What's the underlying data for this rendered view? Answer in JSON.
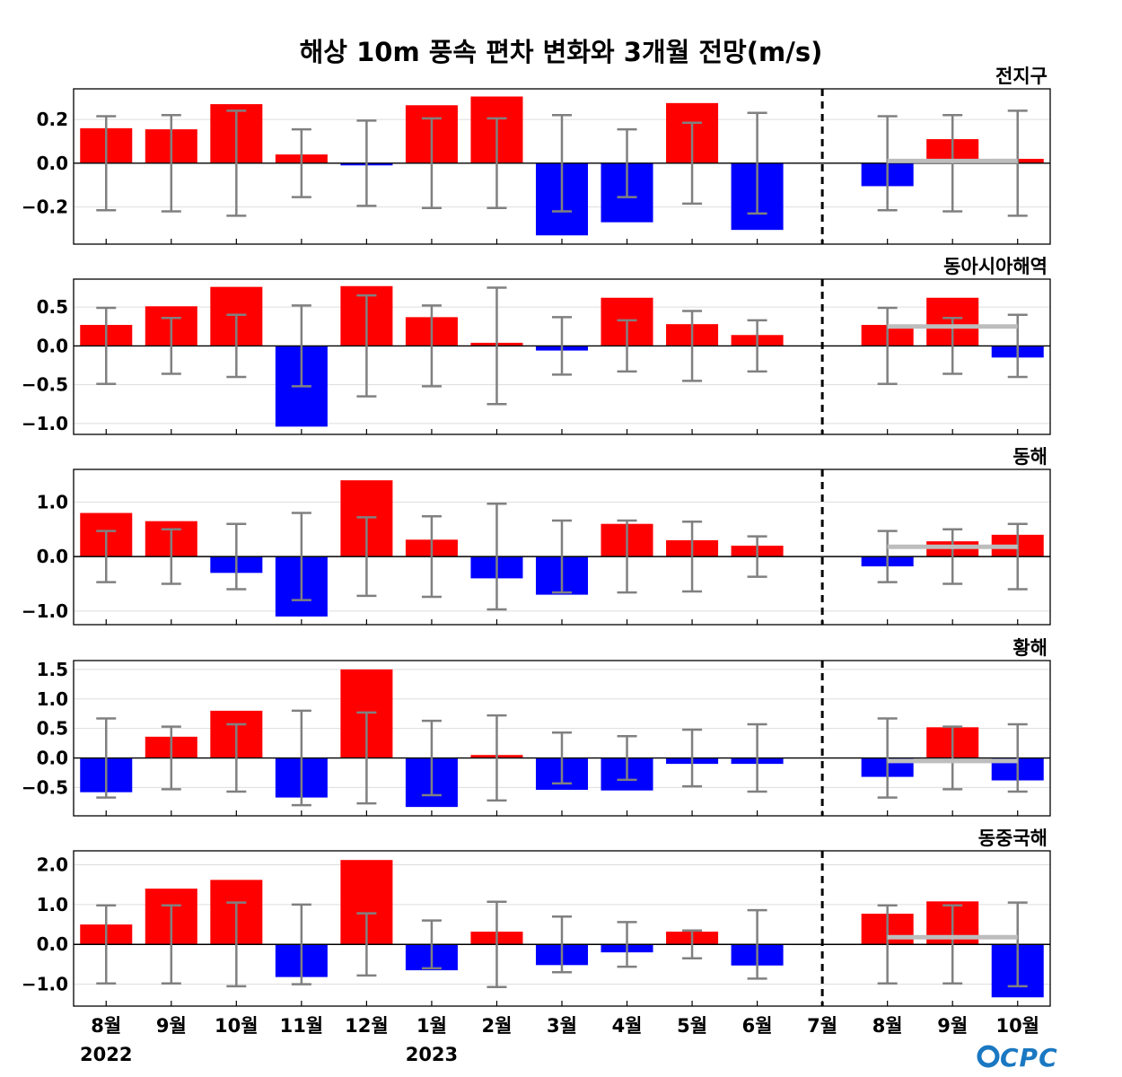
{
  "title": "해상 10m 풍속 편차 변화와 3개월 전망(m/s)",
  "logo": "CPC",
  "colors": {
    "positive": "#ff0000",
    "negative": "#0000ff",
    "errorbar": "#808080",
    "forecast_line": "#bdbdbd",
    "logo": "#1a78c2"
  },
  "chart_data": {
    "type": "bar",
    "categories": [
      "8월",
      "9월",
      "10월",
      "11월",
      "12월",
      "1월",
      "2월",
      "3월",
      "4월",
      "5월",
      "6월",
      "7월",
      "8월",
      "9월",
      "10월"
    ],
    "year_labels": [
      {
        "index": 0,
        "text": "2022"
      },
      {
        "index": 5,
        "text": "2023"
      }
    ],
    "divider_after_category": "7월",
    "panels": [
      {
        "name": "전지구",
        "ylim": [
          -0.37,
          0.34
        ],
        "yticks": [
          0.2,
          0.0,
          -0.2
        ],
        "ytick_labels": [
          "0.2",
          "0.0",
          "−0.2"
        ],
        "values": [
          0.16,
          0.155,
          0.27,
          0.04,
          -0.01,
          0.265,
          0.305,
          -0.33,
          -0.27,
          0.275,
          -0.305,
          0.0,
          -0.105,
          0.11,
          0.02
        ],
        "error_half": [
          0.215,
          0.22,
          0.24,
          0.155,
          0.195,
          0.205,
          0.205,
          0.22,
          0.155,
          0.185,
          0.23,
          0,
          0.215,
          0.22,
          0.24
        ],
        "forecast_line": {
          "value": 0.01,
          "from": "8월",
          "to": "10월"
        }
      },
      {
        "name": "동아시아해역",
        "ylim": [
          -1.14,
          0.86
        ],
        "yticks": [
          0.5,
          0.0,
          -0.5,
          -1.0
        ],
        "ytick_labels": [
          "0.5",
          "0.0",
          "−0.5",
          "−1.0"
        ],
        "values": [
          0.27,
          0.51,
          0.76,
          -1.04,
          0.77,
          0.37,
          0.04,
          -0.06,
          0.62,
          0.28,
          0.14,
          0.0,
          0.27,
          0.62,
          -0.15
        ],
        "error_half": [
          0.49,
          0.36,
          0.4,
          0.52,
          0.65,
          0.52,
          0.75,
          0.37,
          0.33,
          0.45,
          0.33,
          0,
          0.49,
          0.36,
          0.4
        ],
        "forecast_line": {
          "value": 0.25,
          "from": "8월",
          "to": "10월"
        }
      },
      {
        "name": "동해",
        "ylim": [
          -1.25,
          1.6
        ],
        "yticks": [
          1.0,
          0.0,
          -1.0
        ],
        "ytick_labels": [
          "1.0",
          "0.0",
          "−1.0"
        ],
        "values": [
          0.8,
          0.65,
          -0.3,
          -1.1,
          1.4,
          0.31,
          -0.4,
          -0.7,
          0.6,
          0.3,
          0.2,
          0.0,
          -0.18,
          0.28,
          0.4
        ],
        "error_half": [
          0.47,
          0.5,
          0.6,
          0.8,
          0.72,
          0.74,
          0.97,
          0.66,
          0.66,
          0.64,
          0.37,
          0,
          0.47,
          0.5,
          0.6
        ],
        "forecast_line": {
          "value": 0.18,
          "from": "8월",
          "to": "10월"
        }
      },
      {
        "name": "황해",
        "ylim": [
          -0.98,
          1.65
        ],
        "yticks": [
          1.5,
          1.0,
          0.5,
          0.0,
          -0.5
        ],
        "ytick_labels": [
          "1.5",
          "1.0",
          "0.5",
          "0.0",
          "−0.5"
        ],
        "values": [
          -0.58,
          0.36,
          0.8,
          -0.67,
          1.5,
          -0.83,
          0.05,
          -0.54,
          -0.55,
          -0.1,
          -0.1,
          0.0,
          -0.32,
          0.52,
          -0.38
        ],
        "error_half": [
          0.67,
          0.53,
          0.57,
          0.8,
          0.77,
          0.63,
          0.72,
          0.43,
          0.37,
          0.48,
          0.57,
          0,
          0.67,
          0.53,
          0.57
        ],
        "forecast_line": {
          "value": -0.05,
          "from": "8월",
          "to": "10월"
        }
      },
      {
        "name": "동중국해",
        "ylim": [
          -1.55,
          2.35
        ],
        "yticks": [
          2.0,
          1.0,
          0.0,
          -1.0
        ],
        "ytick_labels": [
          "2.0",
          "1.0",
          "0.0",
          "−1.0"
        ],
        "values": [
          0.5,
          1.4,
          1.62,
          -0.82,
          2.12,
          -0.65,
          0.32,
          -0.52,
          -0.2,
          0.32,
          -0.53,
          0.0,
          0.77,
          1.08,
          -1.33
        ],
        "error_half": [
          0.98,
          0.98,
          1.05,
          1.0,
          0.78,
          0.6,
          1.07,
          0.7,
          0.56,
          0.35,
          0.86,
          0,
          0.98,
          0.98,
          1.05
        ],
        "forecast_line": {
          "value": 0.18,
          "from": "8월",
          "to": "10월"
        }
      }
    ]
  }
}
